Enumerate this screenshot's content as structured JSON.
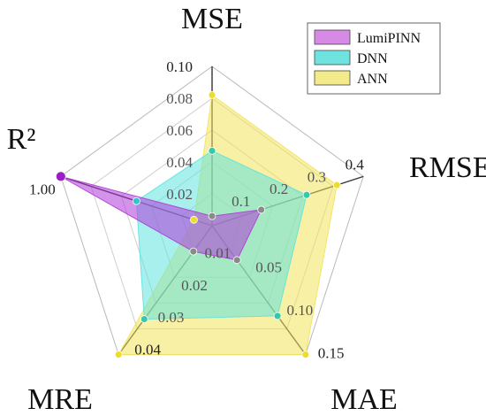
{
  "chart_data": {
    "type": "radar",
    "title": "",
    "axes": [
      {
        "key": "mse",
        "label": "MSE",
        "max": 0.1,
        "ticks": [
          0.02,
          0.04,
          0.06,
          0.08,
          0.1
        ],
        "tick_labels": [
          "0.02",
          "0.04",
          "0.06",
          "0.08",
          "0.10"
        ]
      },
      {
        "key": "rmse",
        "label": "RMSE",
        "max": 0.4,
        "ticks": [
          0.1,
          0.2,
          0.3,
          0.4
        ],
        "tick_labels": [
          "0.1",
          "0.2",
          "0.3",
          "0.4"
        ]
      },
      {
        "key": "mae",
        "label": "MAE",
        "max": 0.15,
        "ticks": [
          0.05,
          0.1,
          0.15
        ],
        "tick_labels": [
          "0.05",
          "0.10",
          "0.15"
        ]
      },
      {
        "key": "mre",
        "label": "MRE",
        "max": 0.04,
        "ticks": [
          0.01,
          0.02,
          0.03,
          0.04
        ],
        "tick_labels": [
          "0.01",
          "0.02",
          "0.03",
          "0.04"
        ]
      },
      {
        "key": "r2",
        "label": "R²",
        "max": 1.0,
        "ticks": [
          1.0
        ],
        "tick_labels": [
          "1.00"
        ]
      }
    ],
    "series": [
      {
        "name": "ANN",
        "color": "#f2e35a",
        "values": [
          0.082,
          0.33,
          0.15,
          0.04,
          0.12
        ]
      },
      {
        "name": "DNN",
        "color": "#5ee3df",
        "values": [
          0.047,
          0.25,
          0.105,
          0.029,
          0.5
        ]
      },
      {
        "name": "LumiPINN",
        "color": "#b03ad8",
        "values": [
          0.006,
          0.13,
          0.04,
          0.008,
          1.0
        ]
      }
    ],
    "legend": {
      "position": "top-right",
      "entries": [
        {
          "name": "LumiPINN",
          "color": "#d68ae6"
        },
        {
          "name": "DNN",
          "color": "#6fe3df"
        },
        {
          "name": "ANN",
          "color": "#f3ea8c"
        }
      ]
    },
    "grid": true,
    "grid_levels": 5
  }
}
